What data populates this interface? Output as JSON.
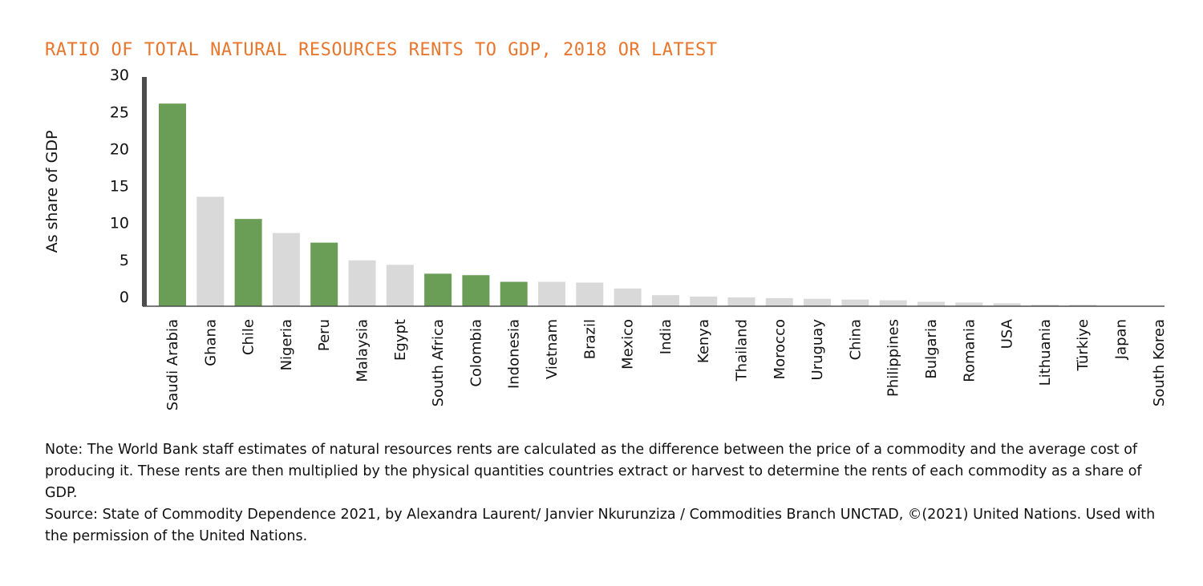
{
  "chart_data": {
    "type": "bar",
    "title": "RATIO OF TOTAL NATURAL RESOURCES RENTS TO GDP, 2018 OR LATEST",
    "ylabel": "As share of GDP",
    "xlabel": "",
    "ylim": [
      0,
      31
    ],
    "yticks": [
      0,
      5,
      10,
      15,
      20,
      25,
      30
    ],
    "categories": [
      "Saudi Arabia",
      "Ghana",
      "Chile",
      "Nigeria",
      "Peru",
      "Malaysia",
      "Egypt",
      "South Africa",
      "Colombia",
      "Indonesia",
      "Vietnam",
      "Brazil",
      "Mexico",
      "India",
      "Kenya",
      "Thailand",
      "Morocco",
      "Uruguay",
      "China",
      "Philippines",
      "Bulgaria",
      "Romania",
      "USA",
      "Lithuania",
      "Türkiye",
      "Japan",
      "South Korea"
    ],
    "values": [
      27.4,
      14.8,
      11.8,
      9.9,
      8.6,
      6.2,
      5.6,
      4.4,
      4.2,
      3.3,
      3.3,
      3.2,
      2.4,
      1.5,
      1.3,
      1.2,
      1.1,
      1.0,
      0.9,
      0.8,
      0.6,
      0.5,
      0.4,
      0.2,
      0.2,
      0.0,
      0.0
    ],
    "highlighted": [
      "Saudi Arabia",
      "Chile",
      "Peru",
      "South Africa",
      "Colombia",
      "Indonesia"
    ],
    "colors": {
      "highlight": "#6a9e56",
      "default": "#d9d9d9",
      "axis": "#4d4d4d",
      "title": "#e8762d"
    },
    "grid": false,
    "legend": "none"
  },
  "notes": {
    "note": "Note: The World Bank staff estimates of natural resources rents are calculated as the difference between the price of a commodity and the average cost of producing it. These rents are then multiplied by the physical quantities countries extract or harvest to determine the rents of each commodity as a share of GDP.",
    "source": "Source: State of Commodity Dependence 2021, by Alexandra Laurent/ Janvier Nkurunziza / Commodities Branch UNCTAD, ©(2021) United Nations. Used with the permission of the United Nations."
  }
}
